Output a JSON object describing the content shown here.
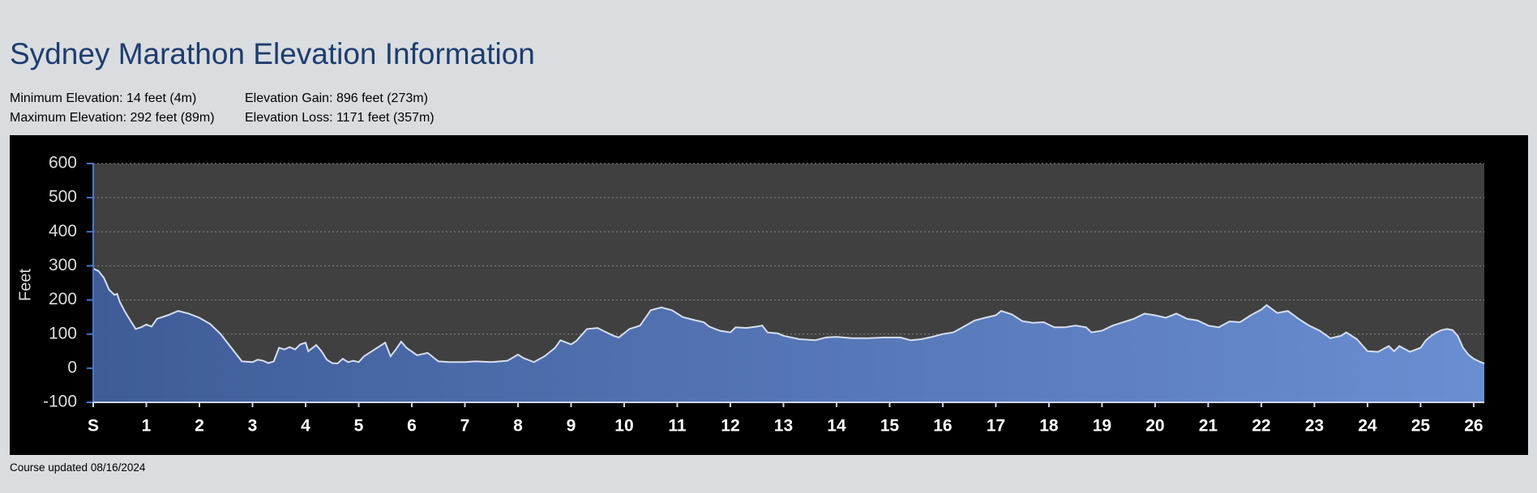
{
  "header": {
    "title": "Sydney Marathon Elevation Information",
    "stats": [
      [
        "Minimum Elevation: 14 feet (4m)",
        "Maximum Elevation: 292 feet (89m)"
      ],
      [
        "Elevation Gain: 896 feet (273m)",
        "Elevation Loss: 1171 feet (357m)"
      ]
    ]
  },
  "chart_data": {
    "type": "area",
    "y_label": "Feet",
    "x": [
      0,
      0.1,
      0.2,
      0.3,
      0.4,
      0.45,
      0.5,
      0.6,
      0.7,
      0.8,
      0.9,
      1.0,
      1.1,
      1.2,
      1.4,
      1.6,
      1.8,
      2.0,
      2.2,
      2.4,
      2.6,
      2.8,
      3.0,
      3.1,
      3.2,
      3.3,
      3.4,
      3.5,
      3.6,
      3.7,
      3.8,
      3.9,
      4.0,
      4.05,
      4.2,
      4.3,
      4.4,
      4.5,
      4.6,
      4.7,
      4.8,
      4.9,
      5.0,
      5.1,
      5.3,
      5.5,
      5.6,
      5.7,
      5.8,
      5.9,
      6.1,
      6.3,
      6.5,
      6.7,
      7.0,
      7.2,
      7.5,
      7.8,
      8.0,
      8.1,
      8.3,
      8.5,
      8.7,
      8.8,
      9.0,
      9.1,
      9.3,
      9.5,
      9.6,
      9.8,
      9.9,
      10.1,
      10.3,
      10.5,
      10.7,
      10.9,
      11.1,
      11.3,
      11.5,
      11.6,
      11.8,
      12.0,
      12.1,
      12.3,
      12.5,
      12.6,
      12.7,
      12.9,
      13.0,
      13.3,
      13.6,
      13.8,
      14.0,
      14.3,
      14.6,
      14.9,
      15.2,
      15.4,
      15.6,
      15.8,
      16.0,
      16.2,
      16.4,
      16.6,
      16.8,
      17.0,
      17.1,
      17.3,
      17.5,
      17.7,
      17.9,
      18.1,
      18.3,
      18.5,
      18.7,
      18.8,
      19.0,
      19.2,
      19.4,
      19.6,
      19.8,
      20.0,
      20.2,
      20.4,
      20.6,
      20.8,
      21.0,
      21.2,
      21.4,
      21.6,
      21.8,
      22.0,
      22.1,
      22.3,
      22.5,
      22.7,
      22.9,
      23.1,
      23.3,
      23.5,
      23.6,
      23.8,
      24.0,
      24.2,
      24.4,
      24.5,
      24.6,
      24.8,
      25.0,
      25.1,
      25.2,
      25.3,
      25.4,
      25.5,
      25.6,
      25.7,
      25.8,
      25.9,
      26.0,
      26.1,
      26.2
    ],
    "values": [
      292,
      285,
      265,
      230,
      215,
      218,
      195,
      165,
      140,
      115,
      120,
      128,
      122,
      145,
      155,
      168,
      160,
      148,
      130,
      100,
      60,
      20,
      18,
      25,
      22,
      15,
      20,
      60,
      55,
      62,
      55,
      70,
      75,
      50,
      68,
      50,
      25,
      15,
      14,
      28,
      18,
      22,
      18,
      35,
      55,
      75,
      35,
      55,
      78,
      60,
      38,
      45,
      20,
      18,
      18,
      20,
      18,
      22,
      40,
      30,
      18,
      35,
      60,
      82,
      70,
      80,
      115,
      118,
      110,
      95,
      90,
      115,
      125,
      170,
      178,
      170,
      150,
      142,
      135,
      122,
      110,
      105,
      120,
      118,
      122,
      125,
      105,
      102,
      95,
      85,
      82,
      90,
      92,
      88,
      88,
      90,
      90,
      82,
      85,
      92,
      100,
      105,
      122,
      140,
      148,
      155,
      168,
      158,
      138,
      133,
      135,
      120,
      120,
      125,
      120,
      105,
      110,
      125,
      135,
      145,
      160,
      155,
      148,
      160,
      145,
      140,
      125,
      120,
      137,
      135,
      155,
      172,
      185,
      162,
      168,
      145,
      125,
      110,
      88,
      95,
      105,
      85,
      50,
      48,
      65,
      50,
      65,
      48,
      60,
      82,
      95,
      105,
      112,
      115,
      112,
      95,
      60,
      40,
      28,
      20,
      14
    ],
    "xlim": [
      0,
      26.2
    ],
    "ylim": [
      -100,
      600
    ],
    "xticks": [
      {
        "value": 0,
        "label": "S"
      },
      1,
      2,
      3,
      4,
      5,
      6,
      7,
      8,
      9,
      10,
      11,
      12,
      13,
      14,
      15,
      16,
      17,
      18,
      19,
      20,
      21,
      22,
      23,
      24,
      25,
      26
    ],
    "yticks": [
      -100,
      0,
      100,
      200,
      300,
      400,
      500,
      600
    ],
    "grid": true,
    "fill_gradient": [
      "#3f5c98",
      "#6a8ed2"
    ],
    "line_color": "#d6def0"
  },
  "footer": {
    "text": "Course updated 08/16/2024"
  }
}
